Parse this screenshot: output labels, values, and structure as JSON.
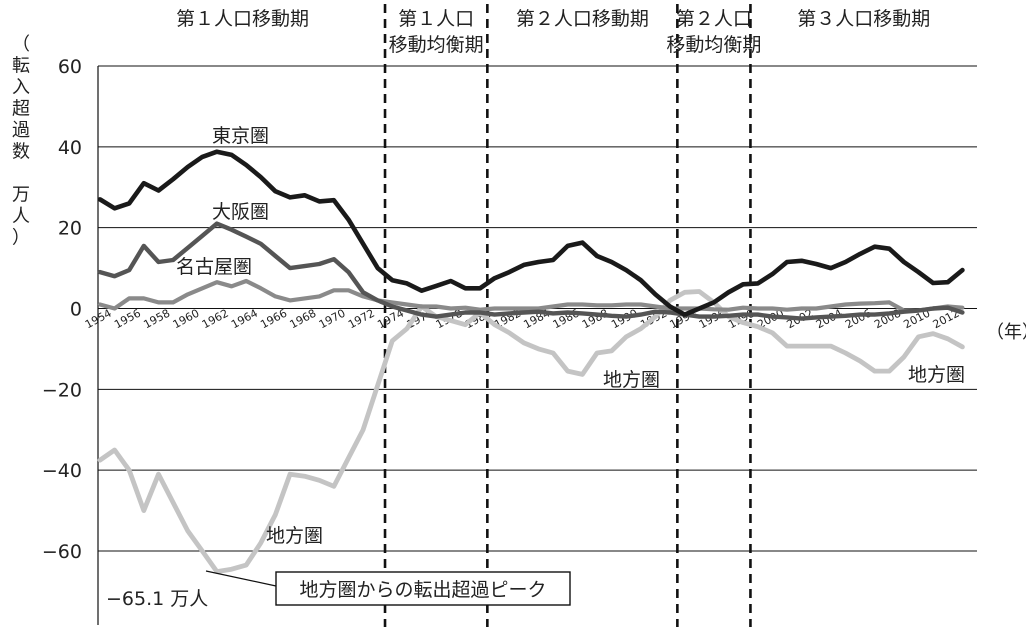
{
  "chart_data": {
    "type": "line",
    "title": "",
    "ylabel": "（転入超過数　万人）",
    "ylabel_chars": [
      "（",
      "転",
      "入",
      "超",
      "過",
      "数",
      "",
      "万",
      "人",
      "）"
    ],
    "xlabel": "（年）",
    "ylim": [
      -75,
      60
    ],
    "yticks": [
      60,
      40,
      20,
      0,
      -20,
      -40,
      -60
    ],
    "ytick_labels": [
      "60",
      "40",
      "20",
      "0",
      "−20",
      "−40",
      "−60"
    ],
    "xlim": [
      1954,
      2014
    ],
    "xticks": [
      1954,
      1956,
      1958,
      1960,
      1962,
      1964,
      1966,
      1968,
      1970,
      1972,
      1974,
      1976,
      1978,
      1980,
      1982,
      1984,
      1986,
      1988,
      1990,
      1992,
      1994,
      1996,
      1998,
      2000,
      2002,
      2004,
      2006,
      2008,
      2010,
      2012
    ],
    "grid": true,
    "periods": [
      {
        "label": "第１人口移動期",
        "start": 1954,
        "end": 1973.5
      },
      {
        "label": "第１人口\n移動均衡期",
        "start": 1973.5,
        "end": 1980.5
      },
      {
        "label": "第２人口移動期",
        "start": 1980.5,
        "end": 1993.5
      },
      {
        "label": "第２人口\n移動均衡期",
        "start": 1993.5,
        "end": 1998.5
      },
      {
        "label": "第３人口移動期",
        "start": 1998.5,
        "end": 2014
      }
    ],
    "series": [
      {
        "name": "東京圏",
        "color": "#1a1a1a",
        "values": [
          [
            1954,
            27
          ],
          [
            1955,
            24.8
          ],
          [
            1956,
            26
          ],
          [
            1957,
            31
          ],
          [
            1958,
            29.2
          ],
          [
            1959,
            32
          ],
          [
            1960,
            35
          ],
          [
            1961,
            37.5
          ],
          [
            1962,
            38.8
          ],
          [
            1963,
            38
          ],
          [
            1964,
            35.5
          ],
          [
            1965,
            32.5
          ],
          [
            1966,
            29
          ],
          [
            1967,
            27.5
          ],
          [
            1968,
            28
          ],
          [
            1969,
            26.5
          ],
          [
            1970,
            26.8
          ],
          [
            1971,
            22
          ],
          [
            1972,
            16
          ],
          [
            1973,
            10
          ],
          [
            1974,
            7
          ],
          [
            1975,
            6.2
          ],
          [
            1976,
            4.4
          ],
          [
            1977,
            5.6
          ],
          [
            1978,
            6.8
          ],
          [
            1979,
            5
          ],
          [
            1980,
            5
          ],
          [
            1981,
            7.5
          ],
          [
            1982,
            9
          ],
          [
            1983,
            10.8
          ],
          [
            1984,
            11.5
          ],
          [
            1985,
            12
          ],
          [
            1986,
            15.5
          ],
          [
            1987,
            16.3
          ],
          [
            1988,
            13
          ],
          [
            1989,
            11.5
          ],
          [
            1990,
            9.5
          ],
          [
            1991,
            7
          ],
          [
            1992,
            3.5
          ],
          [
            1993,
            0.5
          ],
          [
            1994,
            -1.5
          ],
          [
            1995,
            0
          ],
          [
            1996,
            1.5
          ],
          [
            1997,
            4
          ],
          [
            1998,
            6
          ],
          [
            1999,
            6.2
          ],
          [
            2000,
            8.5
          ],
          [
            2001,
            11.5
          ],
          [
            2002,
            11.8
          ],
          [
            2003,
            11
          ],
          [
            2004,
            10
          ],
          [
            2005,
            11.5
          ],
          [
            2006,
            13.5
          ],
          [
            2007,
            15.3
          ],
          [
            2008,
            14.8
          ],
          [
            2009,
            11.5
          ],
          [
            2010,
            9
          ],
          [
            2011,
            6.3
          ],
          [
            2012,
            6.5
          ],
          [
            2013,
            9.5
          ]
        ]
      },
      {
        "name": "大阪圏",
        "color": "#555555",
        "values": [
          [
            1954,
            9
          ],
          [
            1955,
            8
          ],
          [
            1956,
            9.5
          ],
          [
            1957,
            15.5
          ],
          [
            1958,
            11.5
          ],
          [
            1959,
            12
          ],
          [
            1960,
            15
          ],
          [
            1961,
            18
          ],
          [
            1962,
            21
          ],
          [
            1963,
            19.5
          ],
          [
            1964,
            17.8
          ],
          [
            1965,
            16
          ],
          [
            1966,
            13
          ],
          [
            1967,
            10
          ],
          [
            1968,
            10.5
          ],
          [
            1969,
            11
          ],
          [
            1970,
            12.2
          ],
          [
            1971,
            9
          ],
          [
            1972,
            4
          ],
          [
            1973,
            2
          ],
          [
            1974,
            0.5
          ],
          [
            1975,
            -0.5
          ],
          [
            1976,
            -1.5
          ],
          [
            1977,
            -2
          ],
          [
            1978,
            -1.5
          ],
          [
            1979,
            -1
          ],
          [
            1980,
            -1
          ],
          [
            1981,
            -1.5
          ],
          [
            1982,
            -1.2
          ],
          [
            1983,
            -1
          ],
          [
            1984,
            -0.8
          ],
          [
            1985,
            -1.2
          ],
          [
            1986,
            -1
          ],
          [
            1987,
            -1.2
          ],
          [
            1988,
            -1.5
          ],
          [
            1989,
            -1.8
          ],
          [
            1990,
            -2
          ],
          [
            1991,
            -1.5
          ],
          [
            1992,
            -0.8
          ],
          [
            1993,
            -1
          ],
          [
            1994,
            -1.5
          ],
          [
            1995,
            -2
          ],
          [
            1996,
            -2
          ],
          [
            1997,
            -1.8
          ],
          [
            1998,
            -1.5
          ],
          [
            1999,
            -1.5
          ],
          [
            2000,
            -2
          ],
          [
            2001,
            -2.2
          ],
          [
            2002,
            -2.5
          ],
          [
            2003,
            -2.2
          ],
          [
            2004,
            -2
          ],
          [
            2005,
            -1.8
          ],
          [
            2006,
            -1.5
          ],
          [
            2007,
            -1.5
          ],
          [
            2008,
            -1.2
          ],
          [
            2009,
            -0.8
          ],
          [
            2010,
            -0.5
          ],
          [
            2011,
            0
          ],
          [
            2012,
            0.2
          ],
          [
            2013,
            -1
          ]
        ]
      },
      {
        "name": "名古屋圏",
        "color": "#8a8a8a",
        "values": [
          [
            1954,
            1
          ],
          [
            1955,
            0
          ],
          [
            1956,
            2.5
          ],
          [
            1957,
            2.5
          ],
          [
            1958,
            1.5
          ],
          [
            1959,
            1.5
          ],
          [
            1960,
            3.5
          ],
          [
            1961,
            5
          ],
          [
            1962,
            6.5
          ],
          [
            1963,
            5.5
          ],
          [
            1964,
            6.8
          ],
          [
            1965,
            5
          ],
          [
            1966,
            3
          ],
          [
            1967,
            2
          ],
          [
            1968,
            2.5
          ],
          [
            1969,
            3
          ],
          [
            1970,
            4.5
          ],
          [
            1971,
            4.5
          ],
          [
            1972,
            3
          ],
          [
            1973,
            2
          ],
          [
            1974,
            1.5
          ],
          [
            1975,
            1
          ],
          [
            1976,
            0.5
          ],
          [
            1977,
            0.5
          ],
          [
            1978,
            0
          ],
          [
            1979,
            0.2
          ],
          [
            1980,
            -0.3
          ],
          [
            1981,
            0
          ],
          [
            1982,
            0
          ],
          [
            1983,
            0
          ],
          [
            1984,
            0
          ],
          [
            1985,
            0.5
          ],
          [
            1986,
            1
          ],
          [
            1987,
            1
          ],
          [
            1988,
            0.8
          ],
          [
            1989,
            0.8
          ],
          [
            1990,
            1
          ],
          [
            1991,
            1
          ],
          [
            1992,
            0.5
          ],
          [
            1993,
            0
          ],
          [
            1994,
            0
          ],
          [
            1995,
            0
          ],
          [
            1996,
            -0.2
          ],
          [
            1997,
            -0.3
          ],
          [
            1998,
            0.2
          ],
          [
            1999,
            0
          ],
          [
            2000,
            0
          ],
          [
            2001,
            -0.3
          ],
          [
            2002,
            0
          ],
          [
            2003,
            0
          ],
          [
            2004,
            0.5
          ],
          [
            2005,
            1
          ],
          [
            2006,
            1.2
          ],
          [
            2007,
            1.3
          ],
          [
            2008,
            1.5
          ],
          [
            2009,
            -0.5
          ],
          [
            2010,
            -0.5
          ],
          [
            2011,
            0
          ],
          [
            2012,
            0.5
          ],
          [
            2013,
            0.2
          ]
        ]
      },
      {
        "name": "地方圏",
        "color": "#c4c4c4",
        "values": [
          [
            1954,
            -37.5
          ],
          [
            1955,
            -35
          ],
          [
            1956,
            -40
          ],
          [
            1957,
            -50
          ],
          [
            1958,
            -41
          ],
          [
            1959,
            -48
          ],
          [
            1960,
            -55
          ],
          [
            1961,
            -60
          ],
          [
            1962,
            -65.1
          ],
          [
            1963,
            -64.5
          ],
          [
            1964,
            -63.5
          ],
          [
            1965,
            -58
          ],
          [
            1966,
            -51
          ],
          [
            1967,
            -41
          ],
          [
            1968,
            -41.5
          ],
          [
            1969,
            -42.5
          ],
          [
            1970,
            -44
          ],
          [
            1971,
            -37
          ],
          [
            1972,
            -30
          ],
          [
            1973,
            -19
          ],
          [
            1974,
            -8
          ],
          [
            1975,
            -5
          ],
          [
            1976,
            0.5
          ],
          [
            1977,
            -2
          ],
          [
            1978,
            -3
          ],
          [
            1979,
            -4
          ],
          [
            1980,
            -1
          ],
          [
            1981,
            -4
          ],
          [
            1982,
            -6
          ],
          [
            1983,
            -8.5
          ],
          [
            1984,
            -10
          ],
          [
            1985,
            -11
          ],
          [
            1986,
            -15.5
          ],
          [
            1987,
            -16.3
          ],
          [
            1988,
            -11
          ],
          [
            1989,
            -10.5
          ],
          [
            1990,
            -7
          ],
          [
            1991,
            -5
          ],
          [
            1992,
            -2
          ],
          [
            1993,
            2
          ],
          [
            1994,
            4
          ],
          [
            1995,
            4.2
          ],
          [
            1996,
            1.5
          ],
          [
            1997,
            -2
          ],
          [
            1998,
            -3.5
          ],
          [
            1999,
            -4.5
          ],
          [
            2000,
            -6
          ],
          [
            2001,
            -9.3
          ],
          [
            2002,
            -9.3
          ],
          [
            2003,
            -9.3
          ],
          [
            2004,
            -9.3
          ],
          [
            2005,
            -11
          ],
          [
            2006,
            -13
          ],
          [
            2007,
            -15.5
          ],
          [
            2008,
            -15.5
          ],
          [
            2009,
            -12
          ],
          [
            2010,
            -7
          ],
          [
            2011,
            -6.2
          ],
          [
            2012,
            -7.5
          ],
          [
            2013,
            -9.5
          ]
        ]
      }
    ],
    "annotations": {
      "tokyo_label": "東京圏",
      "osaka_label": "大阪圏",
      "nagoya_label": "名古屋圏",
      "chiho_label_bottom": "地方圏",
      "chiho_label_mid": "地方圏",
      "chiho_label_right": "地方圏",
      "peak_value_label": "−65.1 万人",
      "peak_box_label": "地方圏からの転出超過ピーク",
      "peak_year": 1962,
      "peak_value": -65.1
    }
  }
}
